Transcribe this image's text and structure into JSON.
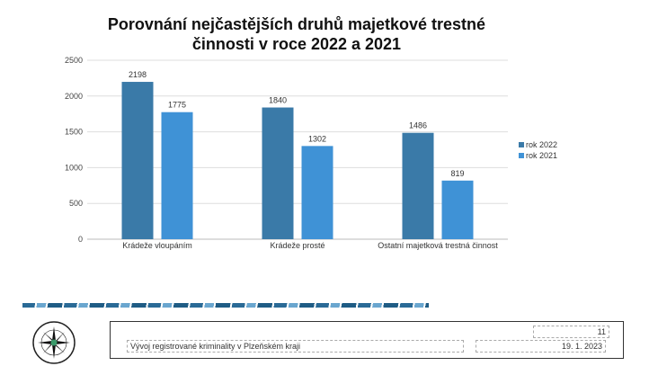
{
  "chart_data": {
    "type": "bar",
    "title": "Porovnání nejčastějších druhů majetkové trestné činnosti v roce 2022 a 2021",
    "title_lines": [
      "Porovnání nejčastějších druhů majetkové trestné",
      "činnosti v roce 2022 a 2021"
    ],
    "categories": [
      "Krádeže vloupáním",
      "Krádeže prosté",
      "Ostatní majetková trestná činnost"
    ],
    "series": [
      {
        "name": "rok 2022",
        "values": [
          2198,
          1840,
          1486
        ],
        "color": "#3a7aa8"
      },
      {
        "name": "rok 2021",
        "values": [
          1775,
          1302,
          819
        ],
        "color": "#3f92d6"
      }
    ],
    "ylim": [
      0,
      2500
    ],
    "yticks": [
      0,
      500,
      1000,
      1500,
      2000,
      2500
    ],
    "xlabel": "",
    "ylabel": "",
    "grid": true,
    "legend": "right"
  },
  "footer": {
    "page": "11",
    "subtitle": "Vývoj registrované kriminality v Plzeňském kraji",
    "date": "19. 1. 2023"
  },
  "logo_text": "POLICIE ČESKÉ REPUBLIKY"
}
